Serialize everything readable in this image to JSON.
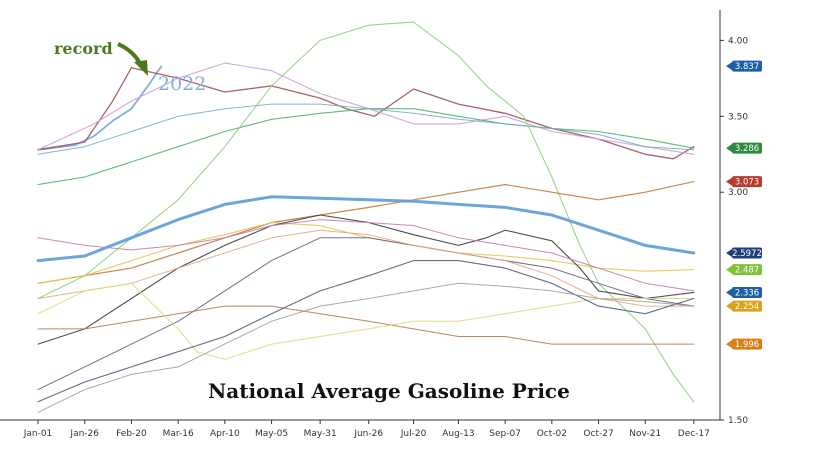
{
  "chart_data": {
    "type": "line",
    "title": "National Average Gasoline Price",
    "ylim": [
      1.5,
      4.2
    ],
    "y_ticks": [
      "4.00",
      "3.50",
      "3.00",
      "1.50"
    ],
    "x_tick_labels": [
      "Jan-01",
      "Jan-26",
      "Feb-20",
      "Mar-16",
      "Apr-10",
      "May-05",
      "May-31",
      "Jun-26",
      "Jul-20",
      "Aug-13",
      "Sep-07",
      "Oct-02",
      "Oct-27",
      "Nov-21",
      "Dec-17"
    ],
    "x_tick_positions": [
      0,
      25,
      50,
      75,
      100,
      125,
      151,
      177,
      201,
      225,
      250,
      275,
      300,
      325,
      351
    ],
    "grid": false,
    "annotations": [
      {
        "text": "record",
        "color": "#4a7a1a"
      },
      {
        "text": "2022",
        "color": "#7fb2e0"
      }
    ],
    "series": [
      {
        "color": "#6fa6e0",
        "width": 1.8,
        "end_label": "3.837",
        "label_color": "#1f5fa8",
        "x": [
          0,
          20,
          30,
          40,
          50,
          60,
          66
        ],
        "values": [
          3.28,
          3.31,
          3.37,
          3.47,
          3.55,
          3.72,
          3.83
        ]
      },
      {
        "color": "#a0525a",
        "width": 1.3,
        "x": [
          0,
          25,
          40,
          50,
          75,
          100,
          125,
          151,
          165,
          180,
          201,
          225,
          250,
          275,
          300,
          325,
          340,
          351
        ],
        "values": [
          3.28,
          3.33,
          3.6,
          3.82,
          3.75,
          3.66,
          3.7,
          3.62,
          3.55,
          3.5,
          3.68,
          3.58,
          3.52,
          3.42,
          3.35,
          3.25,
          3.22,
          3.3
        ]
      },
      {
        "color": "#c9a2d6",
        "width": 1.1,
        "x": [
          0,
          30,
          50,
          75,
          100,
          125,
          151,
          177,
          201,
          225,
          250,
          275,
          300,
          325,
          351
        ],
        "values": [
          3.28,
          3.45,
          3.6,
          3.75,
          3.85,
          3.8,
          3.65,
          3.55,
          3.45,
          3.45,
          3.5,
          3.4,
          3.35,
          3.3,
          3.25
        ]
      },
      {
        "color": "#4db36b",
        "width": 1.1,
        "end_label": "3.286",
        "label_color": "#2d8a3e",
        "x": [
          0,
          25,
          50,
          75,
          100,
          125,
          151,
          177,
          201,
          225,
          250,
          275,
          300,
          325,
          351
        ],
        "values": [
          3.05,
          3.1,
          3.2,
          3.3,
          3.4,
          3.48,
          3.52,
          3.55,
          3.55,
          3.5,
          3.45,
          3.42,
          3.4,
          3.35,
          3.29
        ]
      },
      {
        "color": "#7aa8c9",
        "width": 1.0,
        "x": [
          0,
          25,
          50,
          75,
          100,
          125,
          151,
          177,
          201,
          225,
          250,
          275,
          300,
          325,
          351
        ],
        "values": [
          3.25,
          3.3,
          3.4,
          3.5,
          3.55,
          3.58,
          3.58,
          3.55,
          3.52,
          3.48,
          3.45,
          3.42,
          3.38,
          3.3,
          3.28
        ]
      },
      {
        "color": "#8fd080",
        "width": 1.1,
        "x": [
          0,
          25,
          50,
          75,
          100,
          125,
          151,
          177,
          201,
          225,
          240,
          260,
          275,
          290,
          300,
          325,
          340,
          351
        ],
        "values": [
          2.3,
          2.45,
          2.7,
          2.95,
          3.3,
          3.7,
          4.0,
          4.1,
          4.12,
          3.9,
          3.7,
          3.5,
          3.1,
          2.65,
          2.4,
          2.1,
          1.8,
          1.62
        ]
      },
      {
        "color": "#c27a3c",
        "width": 1.2,
        "end_label": "3.073",
        "label_color": "#b83a2c",
        "x": [
          0,
          25,
          50,
          75,
          100,
          125,
          151,
          177,
          201,
          225,
          250,
          275,
          300,
          325,
          351
        ],
        "values": [
          2.4,
          2.45,
          2.5,
          2.6,
          2.7,
          2.8,
          2.85,
          2.9,
          2.95,
          3.0,
          3.05,
          3.0,
          2.95,
          3.0,
          3.07
        ]
      },
      {
        "color": "#5b9bd5",
        "width": 3.0,
        "end_label": "2.5972",
        "label_color": "#1f3f7a",
        "x": [
          0,
          25,
          50,
          75,
          100,
          125,
          151,
          177,
          201,
          225,
          250,
          275,
          300,
          325,
          351
        ],
        "values": [
          2.55,
          2.58,
          2.7,
          2.82,
          2.92,
          2.97,
          2.96,
          2.95,
          2.94,
          2.92,
          2.9,
          2.85,
          2.75,
          2.65,
          2.6
        ]
      },
      {
        "color": "#e0c84a",
        "width": 1.1,
        "end_label": "2.487",
        "label_color": "#7ec23a",
        "x": [
          0,
          25,
          50,
          75,
          100,
          125,
          151,
          177,
          201,
          225,
          250,
          275,
          300,
          325,
          351
        ],
        "values": [
          2.4,
          2.45,
          2.55,
          2.65,
          2.72,
          2.8,
          2.78,
          2.7,
          2.65,
          2.6,
          2.58,
          2.55,
          2.5,
          2.48,
          2.49
        ]
      },
      {
        "color": "#3a3a3a",
        "width": 1.1,
        "end_label": "2.336",
        "label_color": "#1f5fa8",
        "x": [
          0,
          25,
          50,
          75,
          100,
          125,
          151,
          177,
          201,
          225,
          240,
          250,
          275,
          290,
          300,
          325,
          351
        ],
        "values": [
          2.0,
          2.1,
          2.3,
          2.5,
          2.65,
          2.78,
          2.85,
          2.8,
          2.72,
          2.65,
          2.7,
          2.75,
          2.68,
          2.5,
          2.35,
          2.3,
          2.34
        ]
      },
      {
        "color": "#6a5a8a",
        "width": 1.0,
        "x": [
          0,
          25,
          50,
          75,
          100,
          125,
          151,
          177,
          201,
          225,
          250,
          275,
          300,
          325,
          351
        ],
        "values": [
          1.7,
          1.85,
          2.0,
          2.15,
          2.35,
          2.55,
          2.7,
          2.7,
          2.65,
          2.6,
          2.55,
          2.5,
          2.4,
          2.3,
          2.25
        ]
      },
      {
        "color": "#e6a98a",
        "width": 1.0,
        "end_label": "2.254",
        "label_color": "#d9a21a",
        "x": [
          0,
          25,
          50,
          75,
          100,
          125,
          151,
          177,
          201,
          225,
          250,
          275,
          300,
          325,
          351
        ],
        "values": [
          2.3,
          2.35,
          2.4,
          2.5,
          2.6,
          2.7,
          2.75,
          2.72,
          2.65,
          2.6,
          2.55,
          2.45,
          2.3,
          2.25,
          2.25
        ]
      },
      {
        "color": "#b07a52",
        "width": 1.0,
        "end_label": "1.996",
        "label_color": "#d97f1a",
        "x": [
          0,
          25,
          50,
          75,
          100,
          125,
          151,
          177,
          201,
          225,
          250,
          275,
          300,
          325,
          351
        ],
        "values": [
          2.1,
          2.1,
          2.15,
          2.2,
          2.25,
          2.25,
          2.2,
          2.15,
          2.1,
          2.05,
          2.05,
          2.0,
          2.0,
          2.0,
          2.0
        ]
      },
      {
        "color": "#d9d97a",
        "width": 1.0,
        "x": [
          0,
          25,
          50,
          75,
          85,
          100,
          125,
          151,
          177,
          201,
          225,
          250,
          275,
          300,
          325,
          351
        ],
        "values": [
          2.2,
          2.35,
          2.4,
          2.1,
          1.95,
          1.9,
          2.0,
          2.05,
          2.1,
          2.15,
          2.15,
          2.2,
          2.25,
          2.3,
          2.3,
          2.3
        ]
      },
      {
        "color": "#4c5f7a",
        "width": 1.1,
        "x": [
          0,
          25,
          50,
          75,
          100,
          125,
          151,
          177,
          201,
          225,
          250,
          275,
          300,
          325,
          351
        ],
        "values": [
          1.62,
          1.75,
          1.85,
          1.95,
          2.05,
          2.2,
          2.35,
          2.45,
          2.55,
          2.55,
          2.5,
          2.4,
          2.25,
          2.2,
          2.3
        ]
      },
      {
        "color": "#c77ab8",
        "width": 1.0,
        "x": [
          0,
          25,
          50,
          75,
          100,
          125,
          151,
          177,
          201,
          225,
          250,
          275,
          300,
          325,
          351
        ],
        "values": [
          2.7,
          2.65,
          2.62,
          2.65,
          2.7,
          2.78,
          2.82,
          2.8,
          2.78,
          2.7,
          2.65,
          2.6,
          2.5,
          2.4,
          2.35
        ]
      },
      {
        "color": "#9e9e9e",
        "width": 1.0,
        "x": [
          0,
          25,
          50,
          75,
          100,
          125,
          151,
          177,
          201,
          225,
          250,
          275,
          300,
          325,
          351
        ],
        "values": [
          1.55,
          1.7,
          1.8,
          1.85,
          2.0,
          2.15,
          2.25,
          2.3,
          2.35,
          2.4,
          2.38,
          2.35,
          2.3,
          2.28,
          2.25
        ]
      }
    ]
  }
}
